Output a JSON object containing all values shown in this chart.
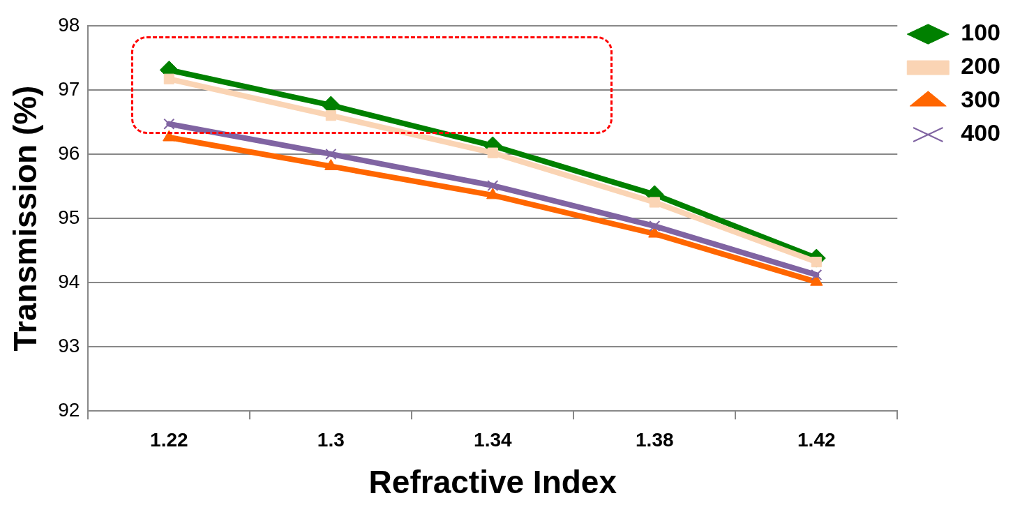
{
  "chart_data": {
    "type": "line",
    "xlabel": "Refractive Index",
    "ylabel": "Transmission (%)",
    "categories": [
      "1.22",
      "1.3",
      "1.34",
      "1.38",
      "1.42"
    ],
    "series": [
      {
        "name": "100",
        "color": "#008000",
        "marker": "diamond",
        "values": [
          97.31,
          96.76,
          96.13,
          95.37,
          94.38
        ]
      },
      {
        "name": "200",
        "color": "#fad4b4",
        "marker": "square",
        "values": [
          97.17,
          96.6,
          96.02,
          95.25,
          94.32
        ]
      },
      {
        "name": "300",
        "color": "#ff6600",
        "marker": "triangle",
        "values": [
          96.26,
          95.81,
          95.36,
          94.76,
          94.01
        ]
      },
      {
        "name": "400",
        "color": "#8064a2",
        "marker": "cross",
        "values": [
          96.47,
          96.0,
          95.51,
          94.88,
          94.12
        ]
      }
    ],
    "ylim": [
      92,
      98
    ],
    "yticks": [
      92,
      93,
      94,
      95,
      96,
      97,
      98
    ],
    "grid": "y",
    "legend": "top right",
    "line_style": "solid"
  }
}
